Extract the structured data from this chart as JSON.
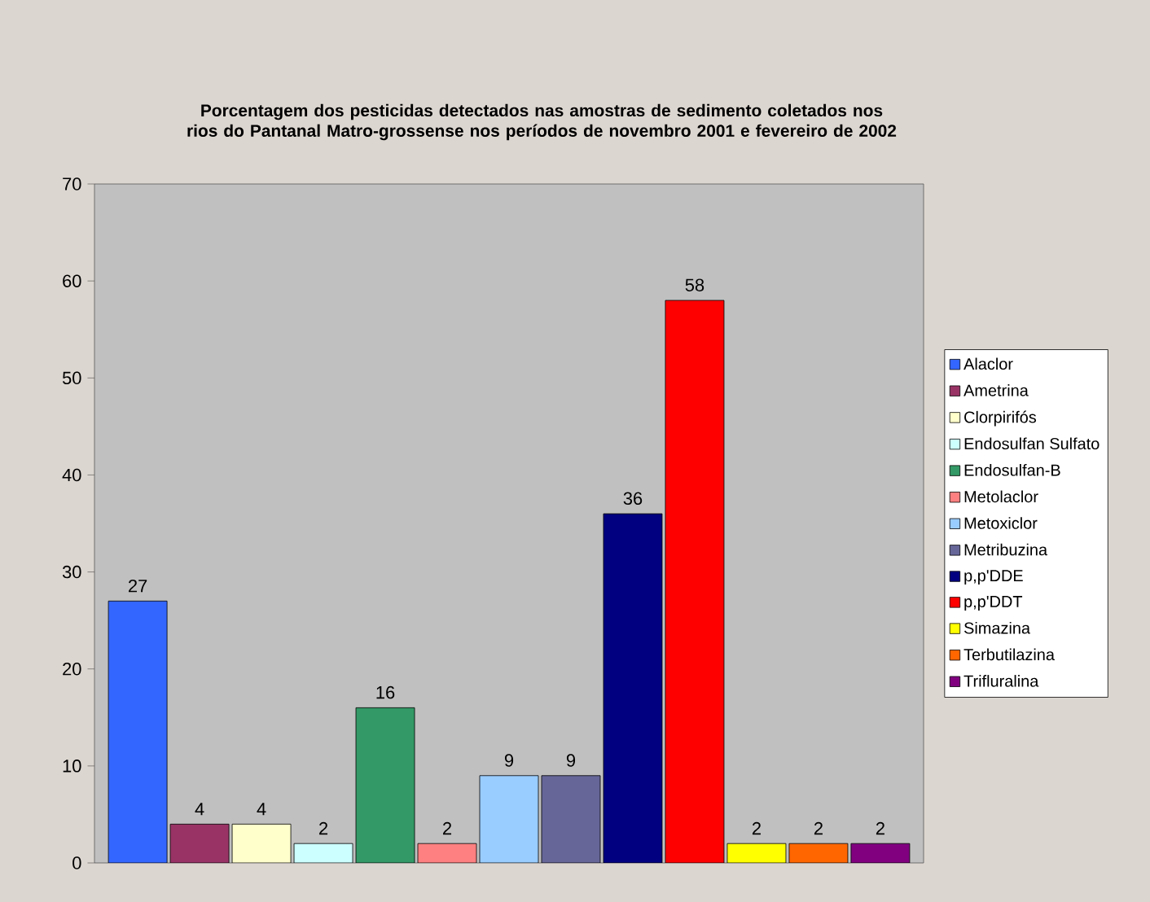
{
  "chart_data": {
    "type": "bar",
    "title": "Porcentagem dos pesticidas detectados nas amostras de sedimento coletados nos rios do Pantanal Matro-grossense nos períodos de novembro 2001 e fevereiro de 2002",
    "categories": [
      null
    ],
    "series": [
      {
        "name": "Alaclor",
        "color": "#3366ff",
        "values": [
          27
        ]
      },
      {
        "name": "Ametrina",
        "color": "#993366",
        "values": [
          4
        ]
      },
      {
        "name": "Clorpirifós",
        "color": "#ffffcc",
        "values": [
          4
        ]
      },
      {
        "name": "Endosulfan Sulfato",
        "color": "#ccffff",
        "values": [
          2
        ]
      },
      {
        "name": "Endosulfan-B",
        "color": "#339966",
        "values": [
          16
        ]
      },
      {
        "name": "Metolaclor",
        "color": "#ff8080",
        "values": [
          2
        ]
      },
      {
        "name": "Metoxiclor",
        "color": "#99ccff",
        "values": [
          9
        ]
      },
      {
        "name": "Metribuzina",
        "color": "#666699",
        "values": [
          9
        ]
      },
      {
        "name": "p,p'DDE",
        "color": "#000080",
        "values": [
          36
        ]
      },
      {
        "name": "p,p'DDT",
        "color": "#ff0000",
        "values": [
          58
        ]
      },
      {
        "name": "Simazina",
        "color": "#ffff00",
        "values": [
          2
        ]
      },
      {
        "name": "Terbutilazina",
        "color": "#ff6600",
        "values": [
          2
        ]
      },
      {
        "name": "Trifluralina",
        "color": "#800080",
        "values": [
          2
        ]
      }
    ],
    "ylim": [
      0,
      70
    ],
    "yticks": [
      0,
      10,
      20,
      30,
      40,
      50,
      60,
      70
    ],
    "data_labels": true,
    "legend": "right",
    "grid": false
  }
}
